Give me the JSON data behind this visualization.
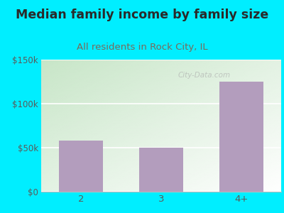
{
  "categories": [
    "2",
    "3",
    "4+"
  ],
  "values": [
    58000,
    50000,
    125000
  ],
  "bar_color": "#b39dbd",
  "title": "Median family income by family size",
  "subtitle": "All residents in Rock City, IL",
  "ylim": [
    0,
    150000
  ],
  "yticks": [
    0,
    50000,
    100000,
    150000
  ],
  "ytick_labels": [
    "$0",
    "$50k",
    "$100k",
    "$150k"
  ],
  "bg_color": "#00eeff",
  "title_color": "#2a2a2a",
  "subtitle_color": "#7a6a5a",
  "tick_color": "#5a5a5a",
  "watermark_text": "City-Data.com",
  "title_fontsize": 12.5,
  "subtitle_fontsize": 9.5,
  "grad_top_left": "#c8e6c9",
  "grad_bottom_right": "#f5fff5"
}
